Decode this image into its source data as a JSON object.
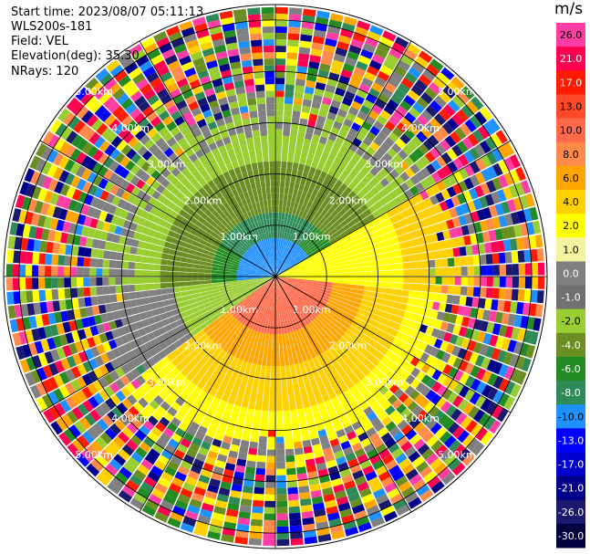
{
  "info": {
    "start_time": "Start time: 2023/08/07 05:11:13",
    "device": "WLS200s-181",
    "field": "Field: VEL",
    "elevation": "Elevation(deg): 35.30",
    "nrays": "NRays: 120"
  },
  "colorbar": {
    "unit": "m/s",
    "levels": [
      "26.0",
      "21.0",
      "17.0",
      "13.0",
      "10.0",
      "8.0",
      "6.0",
      "4.0",
      "2.0",
      "1.0",
      "0.0",
      "-1.0",
      "-2.0",
      "-4.0",
      "-6.0",
      "-8.0",
      "-10.0",
      "-13.0",
      "-17.0",
      "-21.0",
      "-26.0",
      "-30.0"
    ],
    "colors": [
      "#ff3ea5",
      "#ff0050",
      "#ff1a00",
      "#ff4a2a",
      "#ff6a4a",
      "#ff8a4a",
      "#ffa500",
      "#ffd000",
      "#ffff00",
      "#f4f4a0",
      "#808080",
      "#707070",
      "#9acd32",
      "#6b8e23",
      "#228b22",
      "#2e8b57",
      "#1e90ff",
      "#0000ff",
      "#0000cd",
      "#00008b",
      "#191970",
      "#000040"
    ]
  },
  "chart_data": {
    "type": "heatmap",
    "projection": "PPI polar",
    "range_rings_km": [
      1.0,
      2.0,
      3.0,
      4.0,
      5.0
    ],
    "ring_labels": [
      "1.00km",
      "2.00km",
      "3.00km",
      "4.00km",
      "5.00km"
    ],
    "ray_count": 120,
    "colorbar_range": [
      -30.0,
      26.0
    ],
    "unit": "m/s"
  }
}
